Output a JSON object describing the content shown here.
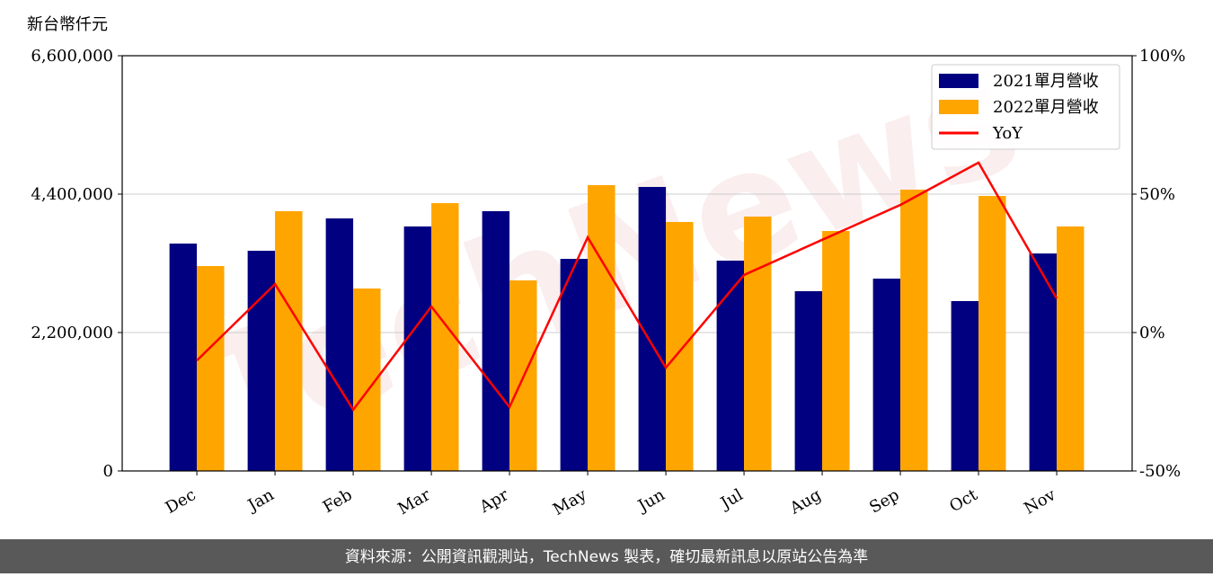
{
  "chart_data": {
    "type": "bar-line",
    "y_label": "新台幣仟元",
    "watermark": "TechNews",
    "categories": [
      "Dec",
      "Jan",
      "Feb",
      "Mar",
      "Apr",
      "May",
      "Jun",
      "Jul",
      "Aug",
      "Sep",
      "Oct",
      "Nov"
    ],
    "series": [
      {
        "name": "2021單月營收",
        "color": "#000080",
        "values": [
          3614000,
          3500000,
          4014000,
          3886000,
          4129000,
          3371000,
          4514000,
          3343000,
          2857000,
          3057000,
          2700000,
          3457000
        ]
      },
      {
        "name": "2022單月營收",
        "color": "#ffa500",
        "values": [
          3257000,
          4129000,
          2900000,
          4257000,
          3029000,
          4543000,
          3957000,
          4043000,
          3814000,
          4471000,
          4371000,
          3886000
        ]
      },
      {
        "name": "YoY",
        "color": "#ff0000",
        "axis": "y2",
        "line": true,
        "values": [
          -10.1,
          17.5,
          -27.9,
          9.4,
          -26.9,
          34.4,
          -12.7,
          20.8,
          33.5,
          46.1,
          61.4,
          12.3
        ]
      }
    ],
    "ylim": [
      0,
      6600000
    ],
    "yticks": [
      {
        "value": 0,
        "label": "0"
      },
      {
        "value": 2200000,
        "label": "2,200,000"
      },
      {
        "value": 4400000,
        "label": "4,400,000"
      },
      {
        "value": 6600000,
        "label": "6,600,000"
      }
    ],
    "y2lim": [
      -50,
      100
    ],
    "y2ticks": [
      {
        "value": -50,
        "label": "-50%"
      },
      {
        "value": 0,
        "label": "0%"
      },
      {
        "value": 50,
        "label": "50%"
      },
      {
        "value": 100,
        "label": "100%"
      }
    ],
    "grid": true,
    "legend": "upper right",
    "footer": "資料來源：公開資訊觀測站，TechNews 製表，確切最新訊息以原站公告為準"
  }
}
